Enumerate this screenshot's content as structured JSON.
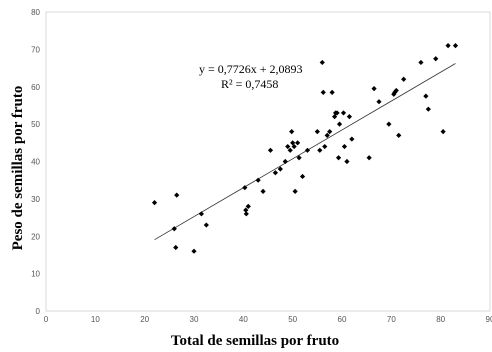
{
  "chart_data": {
    "type": "scatter",
    "title": "",
    "xlabel": "Total de semillas por fruto",
    "ylabel": "Peso de semillas por fruto",
    "xlim": [
      0,
      90
    ],
    "ylim": [
      0,
      80
    ],
    "xticks": [
      0,
      10,
      20,
      30,
      40,
      50,
      60,
      70,
      80,
      90
    ],
    "yticks": [
      0,
      10,
      20,
      30,
      40,
      50,
      60,
      70,
      80
    ],
    "xtick_labels": [
      "0",
      "10",
      "20",
      "30",
      "40",
      "50",
      "60",
      "70",
      "80",
      "90"
    ],
    "ytick_labels": [
      "0",
      "10",
      "20",
      "30",
      "40",
      "50",
      "60",
      "70",
      "80"
    ],
    "grid": false,
    "legend": false,
    "marker_color": "#000000",
    "trendline": {
      "slope": 0.7726,
      "intercept": 2.0893,
      "x_range": [
        22,
        83
      ],
      "equation_label": "y = 0,7726x + 2,0893",
      "r2_label": "R² = 0,7458"
    },
    "series": [
      {
        "points": [
          [
            22,
            29
          ],
          [
            26,
            22
          ],
          [
            26.3,
            17
          ],
          [
            26.5,
            31
          ],
          [
            30,
            16
          ],
          [
            31.5,
            26
          ],
          [
            32.5,
            23
          ],
          [
            40.3,
            33
          ],
          [
            40.5,
            27
          ],
          [
            40.6,
            26
          ],
          [
            41,
            28
          ],
          [
            43,
            35
          ],
          [
            44,
            32
          ],
          [
            45.5,
            43
          ],
          [
            46.5,
            37
          ],
          [
            47.5,
            38
          ],
          [
            48.5,
            40
          ],
          [
            49,
            44
          ],
          [
            49.5,
            43
          ],
          [
            49.8,
            48
          ],
          [
            50,
            45
          ],
          [
            50.3,
            44
          ],
          [
            50.5,
            32
          ],
          [
            51,
            45
          ],
          [
            51.3,
            41
          ],
          [
            52,
            36
          ],
          [
            53,
            43
          ],
          [
            55,
            48
          ],
          [
            55.5,
            43
          ],
          [
            56,
            66.5
          ],
          [
            56.2,
            58.5
          ],
          [
            56.5,
            44
          ],
          [
            57,
            47
          ],
          [
            57.5,
            48
          ],
          [
            58,
            58.5
          ],
          [
            58.5,
            52
          ],
          [
            58.7,
            53
          ],
          [
            59,
            53
          ],
          [
            59.3,
            41
          ],
          [
            59.5,
            50
          ],
          [
            60.3,
            53
          ],
          [
            60.5,
            44
          ],
          [
            61,
            40
          ],
          [
            61.5,
            52
          ],
          [
            62,
            46
          ],
          [
            65.5,
            41
          ],
          [
            66.5,
            59.5
          ],
          [
            67.5,
            56
          ],
          [
            69.5,
            50
          ],
          [
            70.5,
            58
          ],
          [
            70.7,
            58.5
          ],
          [
            71,
            59
          ],
          [
            71.5,
            47
          ],
          [
            72.5,
            62
          ],
          [
            76,
            66.5
          ],
          [
            77,
            57.5
          ],
          [
            77.5,
            54
          ],
          [
            79,
            67.5
          ],
          [
            80.5,
            48
          ],
          [
            81.5,
            71
          ],
          [
            83,
            71
          ]
        ]
      }
    ]
  }
}
